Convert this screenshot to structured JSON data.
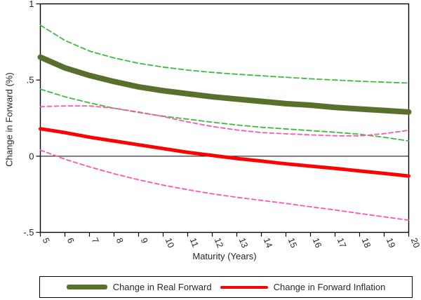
{
  "figure": {
    "background": "#ffffff",
    "border_color": "#000000",
    "text_color": "#24272e"
  },
  "chart_data": {
    "type": "line",
    "title": "",
    "xlabel": "Maturity (Years)",
    "ylabel": "Change in Forward (%)",
    "xlim": [
      5,
      20
    ],
    "ylim": [
      -0.5,
      1
    ],
    "grid": false,
    "zero_line": true,
    "text_color": "#24272e",
    "x": [
      5,
      6,
      7,
      8,
      9,
      10,
      11,
      12,
      13,
      14,
      15,
      16,
      17,
      18,
      19,
      20
    ],
    "xticks": [
      5,
      6,
      7,
      8,
      9,
      10,
      11,
      12,
      13,
      14,
      15,
      16,
      17,
      18,
      19,
      20
    ],
    "yticks": [
      {
        "value": 1,
        "label": "1"
      },
      {
        "value": 0.5,
        "label": ".5"
      },
      {
        "value": 0,
        "label": "0"
      },
      {
        "value": -0.5,
        "label": "-.5"
      }
    ],
    "series": [
      {
        "id": "real-upper-ci",
        "name": "Real Forward upper band",
        "role": "ci",
        "color": "#3dbb3d",
        "dash": "7 4",
        "width": 1.8,
        "values": [
          0.86,
          0.76,
          0.69,
          0.645,
          0.61,
          0.585,
          0.565,
          0.55,
          0.538,
          0.528,
          0.518,
          0.508,
          0.5,
          0.492,
          0.486,
          0.48
        ]
      },
      {
        "id": "real-lower-ci",
        "name": "Real Forward lower band",
        "role": "ci",
        "color": "#3dbb3d",
        "dash": "7 4",
        "width": 1.8,
        "values": [
          0.44,
          0.39,
          0.35,
          0.315,
          0.287,
          0.263,
          0.243,
          0.223,
          0.205,
          0.19,
          0.179,
          0.168,
          0.157,
          0.144,
          0.124,
          0.1
        ]
      },
      {
        "id": "inflation-upper-ci",
        "name": "Forward Inflation upper band",
        "role": "ci",
        "color": "#ff57a8",
        "dash": "6 4",
        "width": 1.8,
        "values": [
          0.325,
          0.33,
          0.33,
          0.315,
          0.29,
          0.26,
          0.225,
          0.195,
          0.172,
          0.155,
          0.147,
          0.14,
          0.134,
          0.133,
          0.148,
          0.17
        ]
      },
      {
        "id": "inflation-lower-ci",
        "name": "Forward Inflation lower band",
        "role": "ci",
        "color": "#ff57a8",
        "dash": "6 4",
        "width": 1.8,
        "values": [
          0.04,
          -0.02,
          -0.07,
          -0.115,
          -0.155,
          -0.19,
          -0.22,
          -0.247,
          -0.27,
          -0.29,
          -0.31,
          -0.332,
          -0.353,
          -0.376,
          -0.398,
          -0.42
        ]
      },
      {
        "id": "real-forward",
        "name": "Change in Real Forward",
        "role": "main",
        "color": "#57702c",
        "dash": null,
        "width": 8,
        "values": [
          0.65,
          0.58,
          0.53,
          0.49,
          0.455,
          0.43,
          0.41,
          0.39,
          0.375,
          0.36,
          0.345,
          0.335,
          0.32,
          0.31,
          0.3,
          0.29
        ]
      },
      {
        "id": "forward-inflation",
        "name": "Change in Forward Inflation",
        "role": "main",
        "color": "#ff0000",
        "dash": null,
        "width": 5,
        "values": [
          0.18,
          0.155,
          0.125,
          0.1,
          0.075,
          0.05,
          0.025,
          0.005,
          -0.015,
          -0.032,
          -0.05,
          -0.065,
          -0.08,
          -0.097,
          -0.113,
          -0.13
        ]
      }
    ],
    "legend_position": "bottom",
    "legend": [
      {
        "label": "Change in Real Forward",
        "color": "#57702c"
      },
      {
        "label": "Change in Forward Inflation",
        "color": "#ff0000"
      }
    ]
  }
}
